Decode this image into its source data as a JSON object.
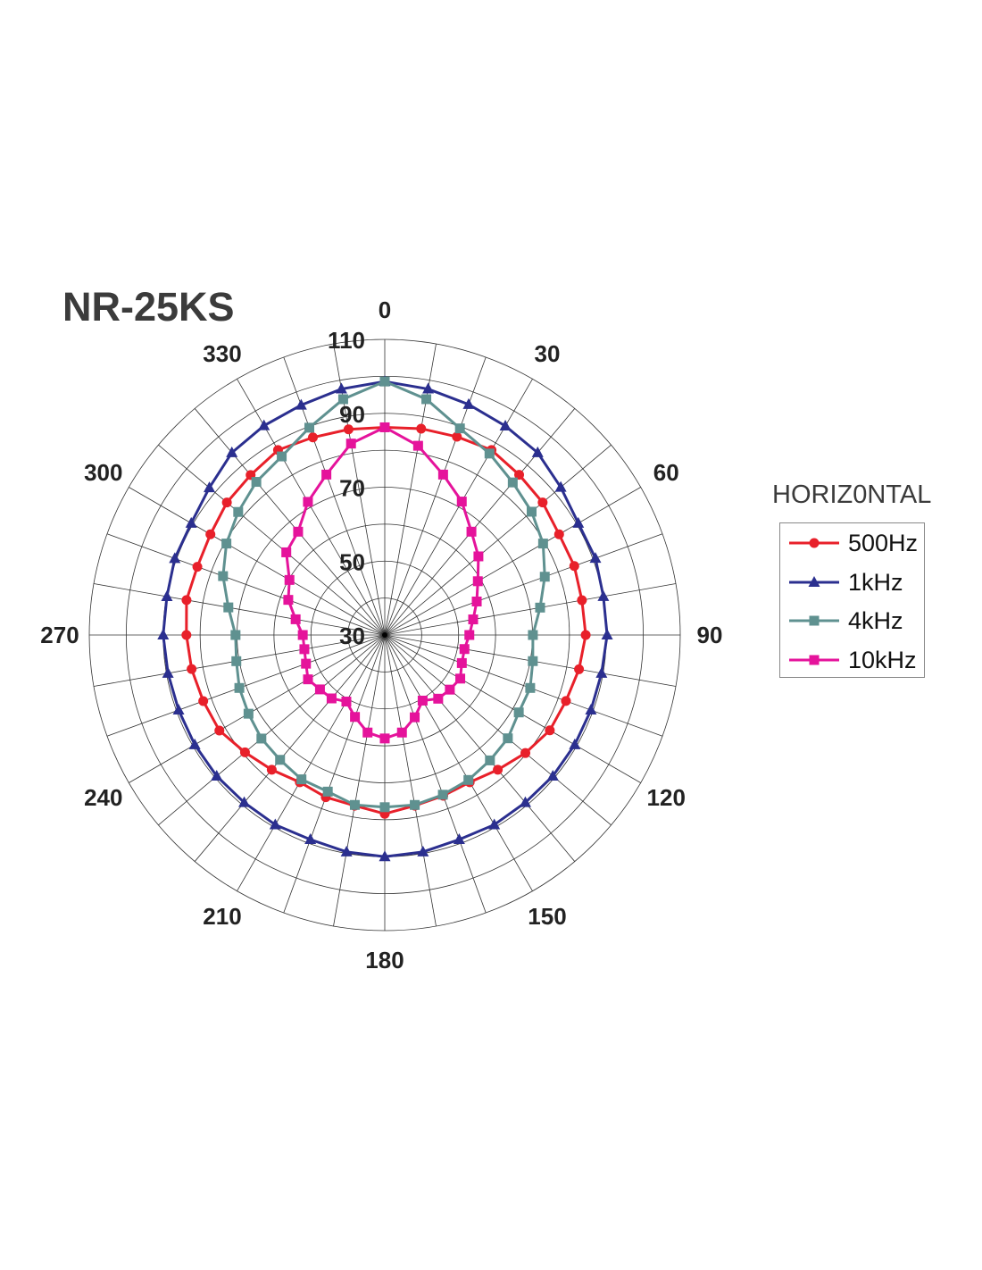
{
  "title": "NR-25KS",
  "chart_data": {
    "type": "polar-line",
    "title": "NR-25KS",
    "legend_title": "HORIZ0NTAL",
    "legend_placement": "right",
    "angles": [
      0,
      10,
      20,
      30,
      40,
      50,
      60,
      70,
      80,
      90,
      100,
      110,
      120,
      130,
      140,
      150,
      160,
      170,
      180,
      190,
      200,
      210,
      220,
      230,
      240,
      250,
      260,
      270,
      280,
      290,
      300,
      310,
      320,
      330,
      340,
      350
    ],
    "angle_tick_labels": [
      "0",
      "30",
      "60",
      "90",
      "120",
      "150",
      "180",
      "210",
      "240",
      "270",
      "300",
      "330"
    ],
    "radial_tick_labels": [
      "30",
      "50",
      "70",
      "90",
      "110"
    ],
    "rlim": [
      30,
      110
    ],
    "grid": true,
    "series": [
      {
        "name": "500Hz",
        "color": "#e8202a",
        "marker": "circle",
        "values": [
          86.2,
          86.7,
          87.1,
          87.8,
          86.6,
          85.8,
          84.5,
          84.6,
          84.2,
          84.4,
          83.4,
          82.2,
          81.6,
          79.7,
          77.6,
          76.0,
          76.3,
          76.9,
          78.4,
          76.9,
          76.7,
          76.0,
          77.6,
          79.4,
          81.7,
          82.3,
          83.1,
          83.7,
          84.5,
          84.0,
          84.5,
          85.8,
          86.5,
          87.8,
          86.9,
          86.5
        ]
      },
      {
        "name": "1kHz",
        "color": "#2b2f8f",
        "marker": "triangle",
        "values": [
          98.6,
          97.6,
          96.4,
          95.3,
          94.4,
          92.2,
          90.5,
          90.7,
          90.1,
          90.2,
          89.6,
          89.4,
          89.4,
          89.4,
          89.2,
          89.3,
          88.9,
          89.6,
          90.0,
          89.6,
          88.9,
          89.3,
          89.2,
          89.4,
          89.4,
          89.4,
          89.6,
          90.0,
          89.9,
          90.5,
          90.5,
          92.0,
          94.4,
          95.4,
          96.2,
          97.6
        ]
      },
      {
        "name": "4kHz",
        "color": "#5f9190",
        "marker": "square",
        "values": [
          98.6,
          94.8,
          89.5,
          86.7,
          83.9,
          81.9,
          79.5,
          76.1,
          72.7,
          70.1,
          70.7,
          71.9,
          71.9,
          73.5,
          74.3,
          75.3,
          76.0,
          76.7,
          76.6,
          76.7,
          75.1,
          75.1,
          74.1,
          73.6,
          72.6,
          71.9,
          70.8,
          70.4,
          73.0,
          76.6,
          79.5,
          81.8,
          84.1,
          85.8,
          89.7,
          94.8
        ]
      },
      {
        "name": "10kHz",
        "color": "#e5139b",
        "marker": "square",
        "values": [
          86.2,
          82.0,
          76.2,
          71.7,
          66.5,
          63.1,
          59.1,
          56.5,
          54.3,
          52.9,
          51.9,
          52.2,
          53.6,
          53.0,
          52.5,
          50.5,
          53.7,
          56.8,
          58.0,
          56.8,
          53.6,
          50.8,
          52.4,
          52.9,
          54.0,
          52.7,
          52.1,
          52.2,
          54.5,
          57.8,
          59.8,
          64.8,
          66.5,
          71.6,
          76.2,
          82.6
        ]
      }
    ]
  }
}
